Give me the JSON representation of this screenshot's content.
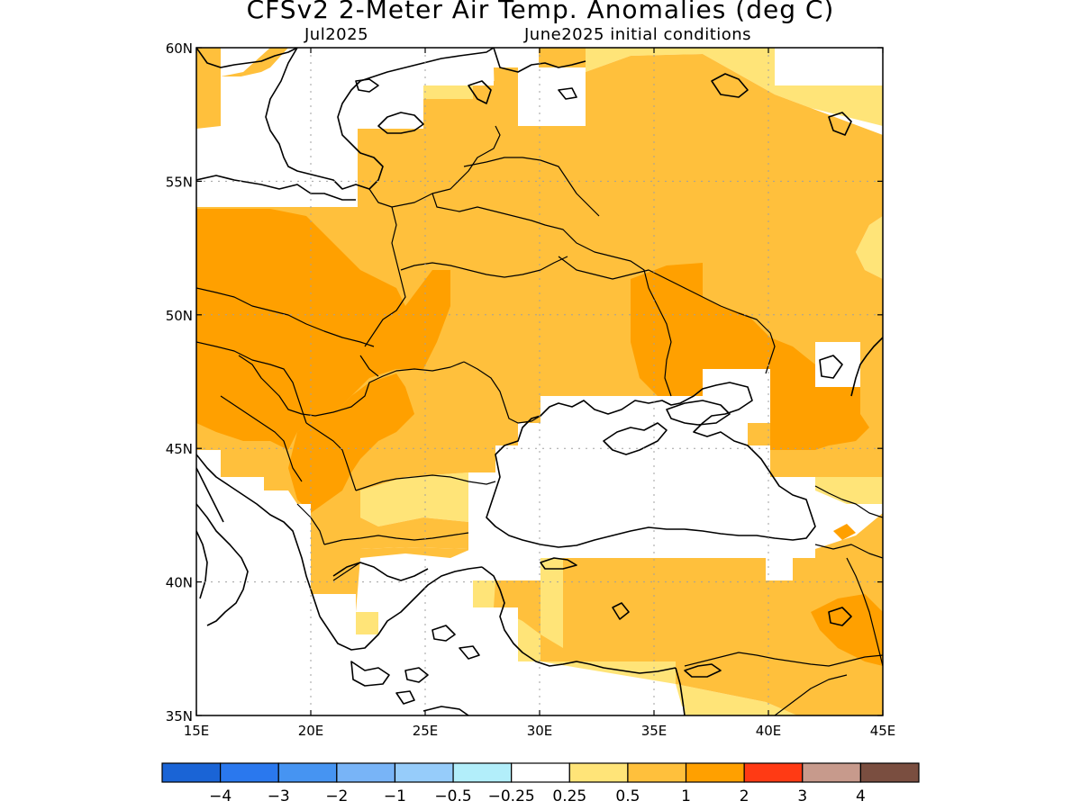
{
  "title": "CFSv2 2-Meter Air Temp. Anomalies (deg C)",
  "subtitle_left": "Jul2025",
  "subtitle_right": "June2025 initial conditions",
  "map": {
    "lon_range": [
      15,
      45
    ],
    "lat_range": [
      35,
      60
    ],
    "lon_ticks": [
      {
        "value": 15,
        "label": "15E"
      },
      {
        "value": 20,
        "label": "20E"
      },
      {
        "value": 25,
        "label": "25E"
      },
      {
        "value": 30,
        "label": "30E"
      },
      {
        "value": 35,
        "label": "35E"
      },
      {
        "value": 40,
        "label": "40E"
      },
      {
        "value": 45,
        "label": "45E"
      }
    ],
    "lat_ticks": [
      {
        "value": 60,
        "label": "60N"
      },
      {
        "value": 55,
        "label": "55N"
      },
      {
        "value": 50,
        "label": "50N"
      },
      {
        "value": 45,
        "label": "45N"
      },
      {
        "value": 40,
        "label": "40N"
      },
      {
        "value": 35,
        "label": "35N"
      }
    ],
    "grid": true
  },
  "legend": {
    "colors": [
      "#1a64d6",
      "#2a78ee",
      "#4694f2",
      "#78b4f7",
      "#96ccfa",
      "#b2eefa",
      "#ffffff",
      "#ffe478",
      "#ffc03c",
      "#ffa000",
      "#ff3a14",
      "#c79a8c",
      "#7a4e40"
    ],
    "labels": [
      "−4",
      "−3",
      "−2",
      "−1",
      "−0.5",
      "−0.25",
      "0.25",
      "0.5",
      "1",
      "2",
      "3",
      "4"
    ]
  },
  "palette": {
    "c05": "#ffe478",
    "c1": "#ffc03c",
    "c2": "#ffa000"
  }
}
